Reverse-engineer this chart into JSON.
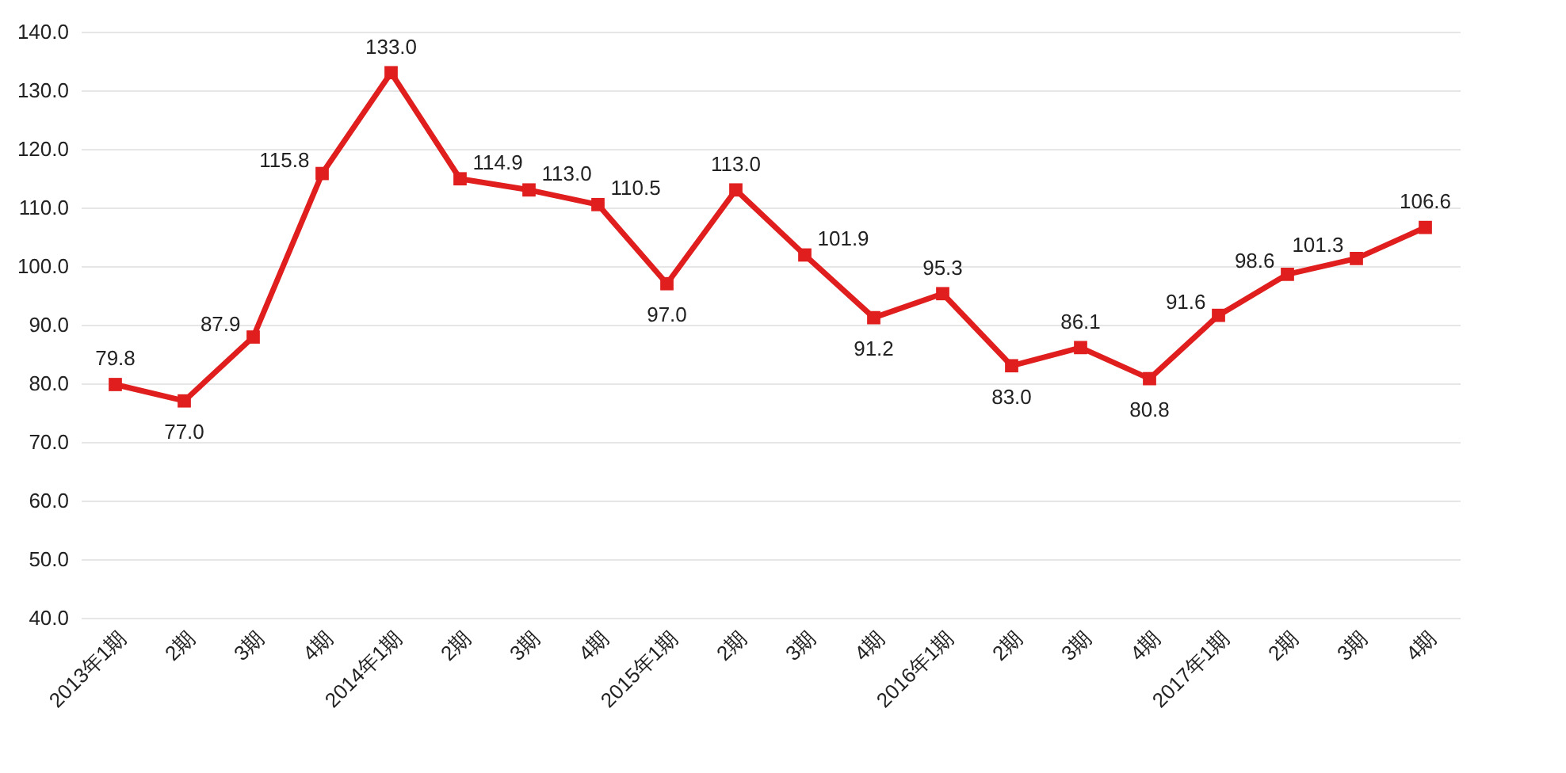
{
  "chart_data": {
    "type": "line",
    "categories": [
      "2013年1期",
      "2期",
      "3期",
      "4期",
      "2014年1期",
      "2期",
      "3期",
      "4期",
      "2015年1期",
      "2期",
      "3期",
      "4期",
      "2016年1期",
      "2期",
      "3期",
      "4期",
      "2017年1期",
      "2期",
      "3期",
      "4期"
    ],
    "series": [
      {
        "color": "#e01e1e",
        "values": [
          79.8,
          77.0,
          87.9,
          115.8,
          133.0,
          114.9,
          113.0,
          110.5,
          97.0,
          113.0,
          101.9,
          91.2,
          95.3,
          83.0,
          86.1,
          80.8,
          91.6,
          98.6,
          101.3,
          106.6
        ],
        "value_labels": [
          "79.8",
          "77.0",
          "87.9",
          "115.8",
          "133.0",
          "114.9",
          "113.0",
          "110.5",
          "97.0",
          "113.0",
          "101.9",
          "91.2",
          "95.3",
          "83.0",
          "86.1",
          "80.8",
          "91.6",
          "98.6",
          "101.3",
          "106.6"
        ]
      }
    ],
    "ylim": [
      40,
      140
    ],
    "yticks": [
      {
        "value": 40,
        "label": "40.0"
      },
      {
        "value": 50,
        "label": "50.0"
      },
      {
        "value": 60,
        "label": "60.0"
      },
      {
        "value": 70,
        "label": "70.0"
      },
      {
        "value": 80,
        "label": "80.0"
      },
      {
        "value": 90,
        "label": "90.0"
      },
      {
        "value": 100,
        "label": "100.0"
      },
      {
        "value": 110,
        "label": "110.0"
      },
      {
        "value": 120,
        "label": "120.0"
      },
      {
        "value": 130,
        "label": "130.0"
      },
      {
        "value": 140,
        "label": "140.0"
      }
    ],
    "grid": "y",
    "marker": "square",
    "line_style": "solid"
  }
}
